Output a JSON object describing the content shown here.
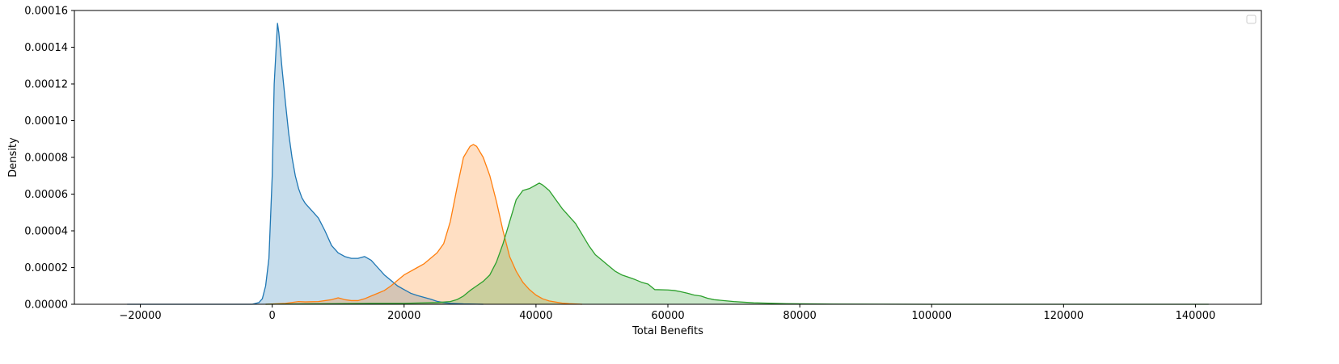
{
  "chart_data": {
    "type": "area",
    "title": "",
    "xlabel": "Total Benefits",
    "ylabel": "Density",
    "xlim": [
      -30000,
      150000
    ],
    "ylim": [
      0,
      0.00016
    ],
    "x_ticks": [
      -20000,
      0,
      20000,
      40000,
      60000,
      80000,
      100000,
      120000,
      140000
    ],
    "x_tick_labels": [
      "−20000",
      "0",
      "20000",
      "40000",
      "60000",
      "80000",
      "100000",
      "120000",
      "140000"
    ],
    "y_ticks": [
      0,
      2e-05,
      4e-05,
      6e-05,
      8e-05,
      0.0001,
      0.00012,
      0.00014,
      0.00016
    ],
    "y_tick_labels": [
      "0.00000",
      "0.00002",
      "0.00004",
      "0.00006",
      "0.00008",
      "0.00010",
      "0.00012",
      "0.00014",
      "0.00016"
    ],
    "grid": false,
    "legend": {
      "placement": "top-right",
      "entries": []
    },
    "series": [
      {
        "color": "#1f77b4",
        "fill_opacity": 0.25,
        "points": [
          [
            -22000,
            0
          ],
          [
            -3000,
            0
          ],
          [
            -2000,
            1e-06
          ],
          [
            -1500,
            3e-06
          ],
          [
            -1000,
            1e-05
          ],
          [
            -500,
            2.5e-05
          ],
          [
            0,
            7e-05
          ],
          [
            300,
            0.00012
          ],
          [
            600,
            0.00014
          ],
          [
            800,
            0.000153
          ],
          [
            1000,
            0.000148
          ],
          [
            1500,
            0.000128
          ],
          [
            2000,
            0.00011
          ],
          [
            2500,
            9.3e-05
          ],
          [
            3000,
            8e-05
          ],
          [
            3500,
            7e-05
          ],
          [
            4000,
            6.3e-05
          ],
          [
            4500,
            5.8e-05
          ],
          [
            5000,
            5.5e-05
          ],
          [
            6000,
            5.1e-05
          ],
          [
            7000,
            4.7e-05
          ],
          [
            8000,
            4e-05
          ],
          [
            9000,
            3.2e-05
          ],
          [
            10000,
            2.8e-05
          ],
          [
            11000,
            2.6e-05
          ],
          [
            12000,
            2.5e-05
          ],
          [
            13000,
            2.5e-05
          ],
          [
            14000,
            2.6e-05
          ],
          [
            15000,
            2.4e-05
          ],
          [
            16000,
            2e-05
          ],
          [
            17000,
            1.6e-05
          ],
          [
            18000,
            1.3e-05
          ],
          [
            19000,
            1e-05
          ],
          [
            20000,
            8e-06
          ],
          [
            21000,
            6e-06
          ],
          [
            22000,
            4.8e-06
          ],
          [
            23000,
            3.8e-06
          ],
          [
            24000,
            2.8e-06
          ],
          [
            25000,
            1.6e-06
          ],
          [
            26000,
            1e-06
          ],
          [
            27000,
            5e-07
          ],
          [
            29000,
            2e-07
          ],
          [
            32000,
            0
          ]
        ]
      },
      {
        "color": "#ff7f0e",
        "fill_opacity": 0.25,
        "points": [
          [
            -1000,
            0
          ],
          [
            2000,
            5e-07
          ],
          [
            3000,
            1e-06
          ],
          [
            4000,
            1.5e-06
          ],
          [
            5000,
            1.3e-06
          ],
          [
            7000,
            1.5e-06
          ],
          [
            9000,
            2.5e-06
          ],
          [
            10000,
            3.5e-06
          ],
          [
            11000,
            2.5e-06
          ],
          [
            12000,
            2e-06
          ],
          [
            13000,
            2e-06
          ],
          [
            14000,
            3e-06
          ],
          [
            15000,
            4.5e-06
          ],
          [
            16000,
            6e-06
          ],
          [
            17000,
            7.5e-06
          ],
          [
            18000,
            1e-05
          ],
          [
            19000,
            1.3e-05
          ],
          [
            20000,
            1.6e-05
          ],
          [
            21000,
            1.8e-05
          ],
          [
            22000,
            2e-05
          ],
          [
            23000,
            2.2e-05
          ],
          [
            24000,
            2.5e-05
          ],
          [
            25000,
            2.8e-05
          ],
          [
            26000,
            3.3e-05
          ],
          [
            27000,
            4.5e-05
          ],
          [
            28000,
            6.3e-05
          ],
          [
            29000,
            8e-05
          ],
          [
            30000,
            8.6e-05
          ],
          [
            30500,
            8.7e-05
          ],
          [
            31000,
            8.6e-05
          ],
          [
            32000,
            8e-05
          ],
          [
            33000,
            7e-05
          ],
          [
            34000,
            5.6e-05
          ],
          [
            35000,
            4e-05
          ],
          [
            36000,
            2.6e-05
          ],
          [
            37000,
            1.8e-05
          ],
          [
            38000,
            1.2e-05
          ],
          [
            39000,
            8e-06
          ],
          [
            40000,
            5e-06
          ],
          [
            41000,
            3e-06
          ],
          [
            42000,
            1.8e-06
          ],
          [
            43000,
            1.2e-06
          ],
          [
            44000,
            6e-07
          ],
          [
            45000,
            3e-07
          ],
          [
            47000,
            0
          ]
        ]
      },
      {
        "color": "#2ca02c",
        "fill_opacity": 0.25,
        "points": [
          [
            -1000,
            0
          ],
          [
            15000,
            5e-07
          ],
          [
            20000,
            5e-07
          ],
          [
            25000,
            1e-06
          ],
          [
            27000,
            1.5e-06
          ],
          [
            28000,
            2.5e-06
          ],
          [
            29000,
            4.5e-06
          ],
          [
            30000,
            7.5e-06
          ],
          [
            31000,
            1e-05
          ],
          [
            32000,
            1.25e-05
          ],
          [
            33000,
            1.6e-05
          ],
          [
            34000,
            2.3e-05
          ],
          [
            35000,
            3.3e-05
          ],
          [
            36000,
            4.5e-05
          ],
          [
            37000,
            5.7e-05
          ],
          [
            38000,
            6.2e-05
          ],
          [
            39000,
            6.3e-05
          ],
          [
            40000,
            6.5e-05
          ],
          [
            40500,
            6.6e-05
          ],
          [
            41000,
            6.5e-05
          ],
          [
            42000,
            6.2e-05
          ],
          [
            43000,
            5.7e-05
          ],
          [
            44000,
            5.2e-05
          ],
          [
            45000,
            4.8e-05
          ],
          [
            46000,
            4.4e-05
          ],
          [
            47000,
            3.8e-05
          ],
          [
            48000,
            3.2e-05
          ],
          [
            49000,
            2.7e-05
          ],
          [
            50000,
            2.4e-05
          ],
          [
            51000,
            2.1e-05
          ],
          [
            52000,
            1.8e-05
          ],
          [
            53000,
            1.6e-05
          ],
          [
            54000,
            1.48e-05
          ],
          [
            55000,
            1.35e-05
          ],
          [
            56000,
            1.2e-05
          ],
          [
            57000,
            1.1e-05
          ],
          [
            58000,
            8e-06
          ],
          [
            60000,
            7.8e-06
          ],
          [
            61000,
            7.5e-06
          ],
          [
            62000,
            6.8e-06
          ],
          [
            63000,
            6e-06
          ],
          [
            64000,
            5e-06
          ],
          [
            65000,
            4.5e-06
          ],
          [
            66000,
            3.3e-06
          ],
          [
            67000,
            2.5e-06
          ],
          [
            70000,
            1.5e-06
          ],
          [
            73000,
            8e-07
          ],
          [
            78000,
            3e-07
          ],
          [
            85000,
            1e-07
          ],
          [
            100000,
            0
          ],
          [
            142000,
            0
          ]
        ]
      }
    ]
  }
}
